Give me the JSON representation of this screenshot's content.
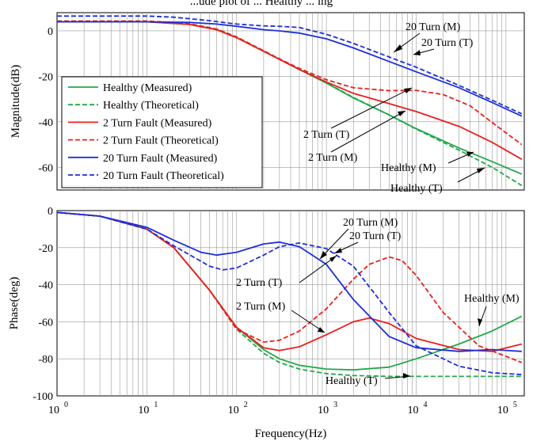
{
  "chart_data": [
    {
      "type": "line",
      "title": "",
      "xlabel": "",
      "ylabel": "Magnitude(dB)",
      "xscale": "log",
      "xlim": [
        1,
        160000
      ],
      "ylim": [
        -70,
        8
      ],
      "grid": true,
      "yticks": [
        {
          "value": 0,
          "label": "0"
        },
        {
          "value": -20,
          "label": "-20"
        },
        {
          "value": -40,
          "label": "-40"
        },
        {
          "value": -60,
          "label": "-60"
        }
      ],
      "legend": {
        "placement": "lower-left",
        "entries": [
          "Healthy (Measured)",
          "Healthy (Theoretical)",
          "2 Turn Fault (Measured)",
          "2 Turn Fault (Theoretical)",
          "20 Turn Fault (Measured)",
          "20 Turn Fault (Theoretical)"
        ]
      },
      "series": [
        {
          "name": "Healthy (Measured)",
          "color": "#22a84a",
          "dash": "solid",
          "x": [
            1,
            10,
            30,
            60,
            100,
            200,
            300,
            500,
            1000,
            2000,
            5000,
            10000,
            30000,
            70000,
            150000
          ],
          "y": [
            4,
            4,
            2.8,
            0.5,
            -3,
            -9,
            -12.5,
            -17,
            -23,
            -29.5,
            -37,
            -43,
            -51.5,
            -57.5,
            -63
          ]
        },
        {
          "name": "Healthy (Theoretical)",
          "color": "#22a84a",
          "dash": "dashed",
          "x": [
            1,
            10,
            30,
            60,
            100,
            200,
            300,
            500,
            1000,
            2000,
            5000,
            10000,
            30000,
            70000,
            150000
          ],
          "y": [
            4.3,
            4.3,
            3.1,
            0.8,
            -2.7,
            -8.8,
            -12.3,
            -16.8,
            -22.8,
            -29.3,
            -37,
            -43.2,
            -52.5,
            -60,
            -68
          ]
        },
        {
          "name": "2 Turn Fault (Measured)",
          "color": "#e8201e",
          "dash": "solid",
          "x": [
            1,
            10,
            30,
            60,
            100,
            200,
            300,
            500,
            1000,
            2000,
            5000,
            10000,
            30000,
            70000,
            150000
          ],
          "y": [
            4,
            4,
            2.8,
            0.5,
            -3,
            -9,
            -12.5,
            -17,
            -22.5,
            -27.5,
            -32,
            -35.5,
            -42,
            -49,
            -56.5
          ]
        },
        {
          "name": "2 Turn Fault (Theoretical)",
          "color": "#e8201e",
          "dash": "dashed",
          "x": [
            1,
            10,
            30,
            60,
            100,
            200,
            300,
            500,
            1000,
            2000,
            5000,
            10000,
            20000,
            40000,
            80000,
            150000
          ],
          "y": [
            4.3,
            4.3,
            3.1,
            0.8,
            -2.7,
            -8.8,
            -12.3,
            -16.5,
            -21.5,
            -25,
            -26.3,
            -26.2,
            -28,
            -33,
            -42,
            -50
          ]
        },
        {
          "name": "20 Turn Fault (Measured)",
          "color": "#1f2fd6",
          "dash": "solid",
          "x": [
            1,
            10,
            30,
            60,
            100,
            200,
            300,
            500,
            1000,
            2000,
            5000,
            10000,
            30000,
            70000,
            150000
          ],
          "y": [
            4,
            4,
            3.7,
            3,
            2,
            0.5,
            0,
            -1,
            -3.5,
            -7.5,
            -13.5,
            -18,
            -25,
            -31.5,
            -37.5
          ]
        },
        {
          "name": "20 Turn Fault (Theoretical)",
          "color": "#1f2fd6",
          "dash": "dashed",
          "x": [
            1,
            10,
            20,
            50,
            100,
            200,
            300,
            500,
            1000,
            2000,
            5000,
            10000,
            30000,
            70000,
            150000
          ],
          "y": [
            6.5,
            6.5,
            6,
            4.5,
            3,
            2.2,
            2,
            1.5,
            -1.5,
            -5.5,
            -11.5,
            -16,
            -24,
            -30.5,
            -36.5
          ]
        }
      ],
      "annotations": [
        "20 Turn (M)",
        "20 Turn (T)",
        "2 Turn (T)",
        "2 Turn (M)",
        "Healthy (M)",
        "Healthy (T)"
      ]
    },
    {
      "type": "line",
      "title": "",
      "xlabel": "Frequency(Hz)",
      "ylabel": "Phase(deg)",
      "xscale": "log",
      "xlim": [
        1,
        160000
      ],
      "ylim": [
        -100,
        0
      ],
      "grid": true,
      "xticks": [
        {
          "value": 1,
          "base": "10",
          "exp": "0"
        },
        {
          "value": 10,
          "base": "10",
          "exp": "1"
        },
        {
          "value": 100,
          "base": "10",
          "exp": "2"
        },
        {
          "value": 1000,
          "base": "10",
          "exp": "3"
        },
        {
          "value": 10000,
          "base": "10",
          "exp": "4"
        },
        {
          "value": 100000,
          "base": "10",
          "exp": "5"
        }
      ],
      "yticks": [
        {
          "value": 0,
          "label": "0"
        },
        {
          "value": -20,
          "label": "-20"
        },
        {
          "value": -40,
          "label": "-40"
        },
        {
          "value": -60,
          "label": "-60"
        },
        {
          "value": -80,
          "label": "-80"
        },
        {
          "value": -100,
          "label": "-100"
        }
      ],
      "series": [
        {
          "name": "Healthy (Measured)",
          "color": "#22a84a",
          "dash": "solid",
          "x": [
            1,
            3,
            10,
            20,
            50,
            100,
            200,
            300,
            500,
            1000,
            2000,
            5000,
            10000,
            30000,
            70000,
            150000
          ],
          "y": [
            -1,
            -3,
            -10,
            -20,
            -43,
            -63,
            -75,
            -80,
            -83.5,
            -85.5,
            -86,
            -84.5,
            -80,
            -72,
            -65,
            -57
          ]
        },
        {
          "name": "Healthy (Theoretical)",
          "color": "#22a84a",
          "dash": "dashed",
          "x": [
            1,
            3,
            10,
            20,
            50,
            100,
            200,
            300,
            500,
            1000,
            2000,
            5000,
            10000,
            30000,
            70000,
            150000
          ],
          "y": [
            -1,
            -3,
            -10,
            -20,
            -43,
            -64,
            -77,
            -82,
            -85.5,
            -88,
            -89,
            -89.5,
            -89.5,
            -89.5,
            -89.5,
            -89.5
          ]
        },
        {
          "name": "2 Turn Fault (Measured)",
          "color": "#e8201e",
          "dash": "solid",
          "x": [
            1,
            3,
            10,
            20,
            50,
            100,
            200,
            300,
            500,
            1000,
            2000,
            3000,
            5000,
            10000,
            30000,
            70000,
            150000
          ],
          "y": [
            -1,
            -3,
            -10,
            -20,
            -43,
            -63,
            -74,
            -75.5,
            -73.5,
            -67,
            -60,
            -58,
            -61,
            -69,
            -75,
            -76,
            -72
          ]
        },
        {
          "name": "2 Turn Fault (Theoretical)",
          "color": "#e8201e",
          "dash": "dashed",
          "x": [
            1,
            3,
            10,
            20,
            50,
            100,
            200,
            300,
            500,
            1000,
            2000,
            3000,
            5000,
            7000,
            10000,
            20000,
            50000,
            150000
          ],
          "y": [
            -1,
            -3,
            -10,
            -20,
            -43,
            -64,
            -71,
            -70,
            -65,
            -53,
            -37,
            -29,
            -25,
            -27,
            -35,
            -55,
            -73,
            -82
          ]
        },
        {
          "name": "20 Turn Fault (Measured)",
          "color": "#1f2fd6",
          "dash": "solid",
          "x": [
            1,
            3,
            10,
            20,
            40,
            60,
            100,
            200,
            300,
            500,
            1000,
            2000,
            5000,
            10000,
            30000,
            70000,
            150000
          ],
          "y": [
            -1,
            -3,
            -9,
            -16,
            -22.5,
            -24,
            -22.5,
            -18,
            -17,
            -19.5,
            -29,
            -48,
            -68,
            -74,
            -76,
            -75,
            -76
          ]
        },
        {
          "name": "20 Turn Fault (Theoretical)",
          "color": "#1f2fd6",
          "dash": "dashed",
          "x": [
            1,
            3,
            10,
            20,
            50,
            70,
            100,
            200,
            300,
            500,
            1000,
            2000,
            5000,
            10000,
            30000,
            70000,
            150000
          ],
          "y": [
            -1,
            -3,
            -10,
            -19,
            -30,
            -32,
            -31,
            -24,
            -19.5,
            -17.5,
            -20.5,
            -30,
            -55,
            -73,
            -84,
            -87.5,
            -88.5
          ]
        }
      ],
      "annotations": [
        "20 Turn (M)",
        "20 Turn (T)",
        "2 Turn (T)",
        "2 Turn (M)",
        "Healthy (M)",
        "Healthy (T)"
      ]
    }
  ],
  "labels": {
    "partial_top_title": "...ude plot of ... Healthy ... ing",
    "mag_20m": "20 Turn (M)",
    "mag_20t": "20 Turn (T)",
    "mag_2t": "2 Turn (T)",
    "mag_2m": "2 Turn (M)",
    "mag_hm": "Healthy (M)",
    "mag_ht": "Healthy (T)",
    "ph_20m": "20 Turn (M)",
    "ph_20t": "20 Turn (T)",
    "ph_2t": "2 Turn (T)",
    "ph_2m": "2 Turn (M)",
    "ph_hm": "Healthy (M)",
    "ph_ht": "Healthy (T)"
  }
}
